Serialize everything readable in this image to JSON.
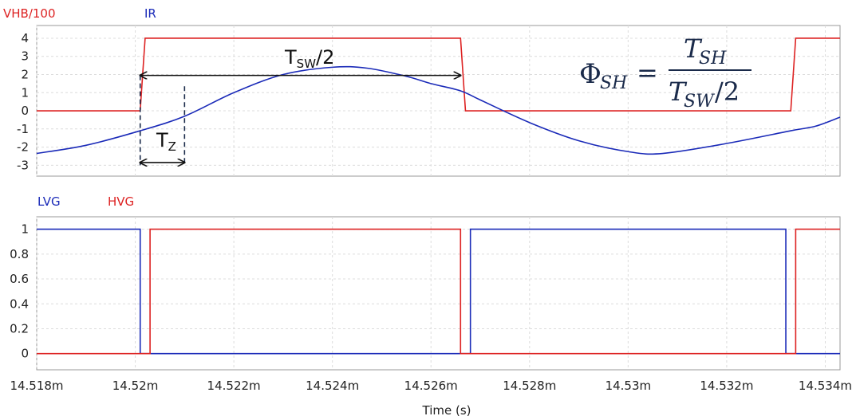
{
  "chart_data": [
    {
      "type": "line",
      "legend": [
        "VHB/100",
        "IR"
      ],
      "legend_placement": "top-left",
      "grid": true,
      "xlim": [
        14.518,
        14.5343
      ],
      "ylim": [
        -3.6,
        4.7
      ],
      "y_ticks": [
        4,
        3,
        2,
        1,
        0,
        -1,
        -2,
        -3
      ],
      "y_tick_labels": [
        "4",
        "3",
        "2",
        "1",
        "0",
        "-1",
        "-2",
        "-3"
      ],
      "colors": {
        "VHB/100": "#dd2222",
        "IR": "#1a2ab8"
      },
      "series": [
        {
          "name": "VHB/100",
          "x": [
            14.518,
            14.5201,
            14.5202,
            14.5266,
            14.5267,
            14.5333,
            14.5334,
            14.5343
          ],
          "y": [
            0,
            0,
            4,
            4,
            0,
            0,
            4,
            4
          ]
        },
        {
          "name": "IR",
          "x": [
            14.518,
            14.519,
            14.5201,
            14.521,
            14.522,
            14.523,
            14.524,
            14.5247,
            14.5255,
            14.526,
            14.5266,
            14.527,
            14.528,
            14.529,
            14.53,
            14.5307,
            14.532,
            14.5333,
            14.5338,
            14.5343
          ],
          "y": [
            -2.35,
            -1.9,
            -1.1,
            -0.3,
            1.0,
            2.0,
            2.4,
            2.35,
            1.9,
            1.5,
            1.1,
            0.6,
            -0.65,
            -1.65,
            -2.25,
            -2.35,
            -1.8,
            -1.1,
            -0.85,
            -0.35
          ]
        }
      ],
      "annotations": {
        "tsw_label": "T",
        "tsw_sub": "SW",
        "tsw_tail": "/2",
        "tz_label": "T",
        "tz_sub": "Z",
        "tsw_arrow_x": [
          14.5201,
          14.5266
        ],
        "tsw_arrow_y": 1.95,
        "tz_arrow_x": [
          14.5201,
          14.521
        ],
        "tz_arrow_y": -2.85,
        "tz_dash_bottom": -3.0
      },
      "formula": {
        "lhs": "Φ",
        "lhs_sub": "SH",
        "eq": "=",
        "num": "T",
        "num_sub": "SH",
        "den": "T",
        "den_sub": "SW",
        "den_tail": "/2"
      }
    },
    {
      "type": "line",
      "legend": [
        "LVG",
        "HVG"
      ],
      "legend_placement": "top-left",
      "grid": true,
      "xlim": [
        14.518,
        14.5343
      ],
      "ylim": [
        -0.13,
        1.1
      ],
      "y_ticks": [
        1,
        0.8,
        0.6,
        0.4,
        0.2,
        0
      ],
      "y_tick_labels": [
        "1",
        "0.8",
        "0.6",
        "0.4",
        "0.2",
        "0"
      ],
      "x_ticks": [
        14.518,
        14.52,
        14.522,
        14.524,
        14.526,
        14.528,
        14.53,
        14.532,
        14.534
      ],
      "x_tick_labels": [
        "14.518m",
        "14.52m",
        "14.522m",
        "14.524m",
        "14.526m",
        "14.528m",
        "14.53m",
        "14.532m",
        "14.534m"
      ],
      "xlabel": "Time (s)",
      "colors": {
        "LVG": "#1a2ab8",
        "HVG": "#dd2222"
      },
      "series": [
        {
          "name": "LVG",
          "x": [
            14.518,
            14.5201,
            14.5201,
            14.5268,
            14.5268,
            14.5332,
            14.5332,
            14.5343
          ],
          "y": [
            1,
            1,
            0,
            0,
            1,
            1,
            0,
            0
          ]
        },
        {
          "name": "HVG",
          "x": [
            14.518,
            14.5203,
            14.5203,
            14.5266,
            14.5266,
            14.5334,
            14.5334,
            14.5343
          ],
          "y": [
            0,
            0,
            1,
            1,
            0,
            0,
            1,
            1
          ]
        }
      ]
    }
  ]
}
